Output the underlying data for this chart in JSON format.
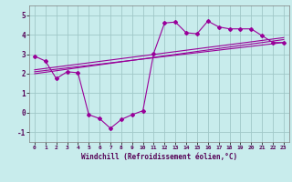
{
  "xlabel": "Windchill (Refroidissement éolien,°C)",
  "bg_color": "#c8ecec",
  "line_color": "#990099",
  "xlim": [
    -0.5,
    23.5
  ],
  "ylim": [
    -1.5,
    5.5
  ],
  "xticks": [
    0,
    1,
    2,
    3,
    4,
    5,
    6,
    7,
    8,
    9,
    10,
    11,
    12,
    13,
    14,
    15,
    16,
    17,
    18,
    19,
    20,
    21,
    22,
    23
  ],
  "yticks": [
    -1,
    0,
    1,
    2,
    3,
    4,
    5
  ],
  "scatter_x": [
    0,
    1,
    2,
    3,
    4,
    5,
    6,
    7,
    8,
    9,
    10,
    11,
    12,
    13,
    14,
    15,
    16,
    17,
    18,
    19,
    20,
    21,
    22,
    23
  ],
  "scatter_y": [
    2.9,
    2.65,
    1.75,
    2.1,
    2.05,
    -0.1,
    -0.3,
    -0.8,
    -0.35,
    -0.1,
    0.1,
    3.05,
    4.6,
    4.65,
    4.1,
    4.05,
    4.7,
    4.4,
    4.3,
    4.3,
    4.3,
    3.95,
    3.6,
    3.6
  ],
  "reg1_y0": 2.2,
  "reg1_y1": 3.85,
  "reg2_y0": 2.1,
  "reg2_y1": 3.6,
  "reg3_y0": 2.0,
  "reg3_y1": 3.75
}
